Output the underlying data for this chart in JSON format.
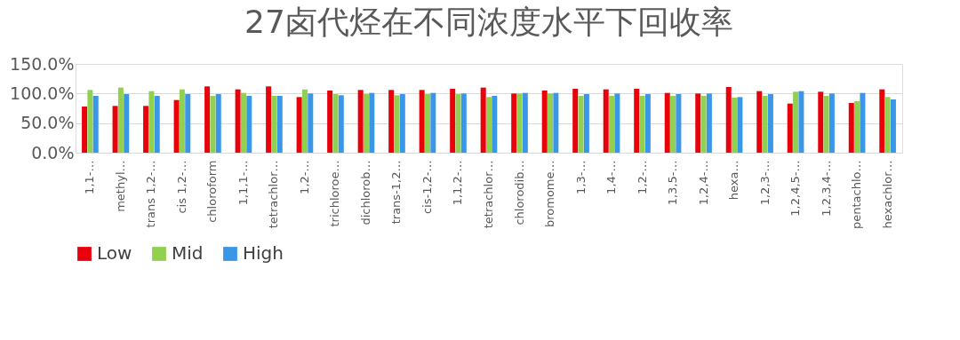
{
  "chart_data": {
    "type": "bar",
    "title": "27卤代烃在不同浓度水平下回收率",
    "categories": [
      "1,1-…",
      "methyl…",
      "trans 1,2-…",
      "cis 1,2-…",
      "chloroform",
      "1,1,1-…",
      "tetrachlor…",
      "1,2-…",
      "trichloroe…",
      "dichlorob…",
      "trans-1,2…",
      "cis-1,2-…",
      "1,1,2-…",
      "tetrachlor…",
      "chlorodib…",
      "bromome…",
      "1,3-…",
      "1,4-…",
      "1,2-…",
      "1,3,5-…",
      "1,2,4-…",
      "hexa…",
      "1,2,3-…",
      "1,2,4,5-…",
      "1,2,3,4-…",
      "pentachlo…",
      "hexachlor…"
    ],
    "series": [
      {
        "name": "Low",
        "color": "#e8000b",
        "values": [
          78,
          79,
          79,
          89,
          112,
          107,
          112,
          94,
          105,
          106,
          106,
          106,
          108,
          110,
          100,
          105,
          108,
          107,
          108,
          101,
          100,
          111,
          104,
          83,
          103,
          84,
          107
        ]
      },
      {
        "name": "Mid",
        "color": "#92d050",
        "values": [
          106,
          110,
          104,
          107,
          96,
          101,
          96,
          107,
          99,
          99,
          97,
          99,
          99,
          94,
          100,
          100,
          96,
          96,
          96,
          96,
          96,
          93,
          96,
          103,
          96,
          87,
          94
        ]
      },
      {
        "name": "High",
        "color": "#3a97e8",
        "values": [
          96,
          99,
          96,
          99,
          99,
          96,
          96,
          100,
          97,
          101,
          99,
          101,
          100,
          96,
          101,
          101,
          99,
          100,
          99,
          99,
          100,
          94,
          99,
          104,
          100,
          101,
          90
        ]
      }
    ],
    "ylim": [
      0,
      150
    ],
    "yticks": [
      {
        "value": 0,
        "label": "0.0%"
      },
      {
        "value": 50,
        "label": "50.0%"
      },
      {
        "value": 100,
        "label": "100.0%"
      },
      {
        "value": 150,
        "label": "150.0%"
      }
    ],
    "grid": "y",
    "legend": "bottom"
  }
}
